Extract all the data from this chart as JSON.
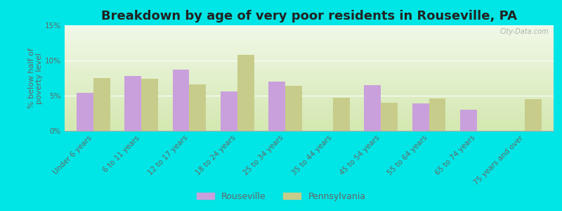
{
  "title": "Breakdown by age of very poor residents in Rouseville, PA",
  "ylabel": "% below half of\npoverty level",
  "categories": [
    "Under 6 years",
    "6 to 11 years",
    "12 to 17 years",
    "18 to 24 years",
    "25 to 34 years",
    "35 to 44 years",
    "45 to 54 years",
    "55 to 64 years",
    "65 to 74 years",
    "75 years and over"
  ],
  "rouseville": [
    5.4,
    7.8,
    8.7,
    5.6,
    7.0,
    0.0,
    6.5,
    3.9,
    3.0,
    0.0
  ],
  "pennsylvania": [
    7.5,
    7.4,
    6.6,
    10.8,
    6.4,
    4.7,
    4.0,
    4.6,
    0.0,
    4.5
  ],
  "rouseville_color": "#c9a0dc",
  "pennsylvania_color": "#c8cc8a",
  "background_outer": "#00e5e5",
  "background_plot_bottom": "#d4e8b0",
  "background_plot_top": "#f0f8e8",
  "ylim": [
    0,
    15
  ],
  "yticks": [
    0,
    5,
    10,
    15
  ],
  "ytick_labels": [
    "0%",
    "5%",
    "10%",
    "15%"
  ],
  "title_fontsize": 13,
  "axis_label_fontsize": 8,
  "tick_fontsize": 7.5,
  "bar_width": 0.35,
  "legend_labels": [
    "Rouseville",
    "Pennsylvania"
  ],
  "text_color": "#666666",
  "watermark": "City-Data.com"
}
